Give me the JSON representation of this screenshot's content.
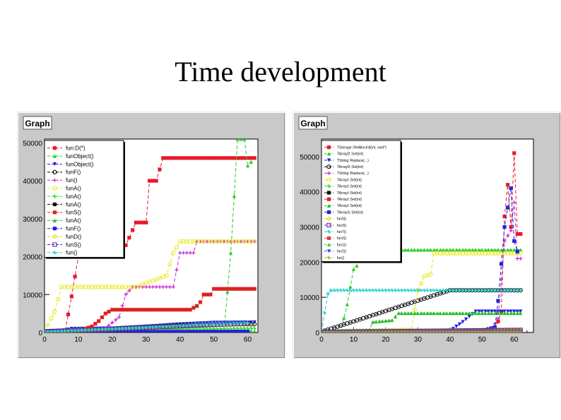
{
  "slide": {
    "title": "Time development"
  },
  "chart_data": [
    {
      "type": "line",
      "title": "Graph",
      "xlim": [
        0,
        63
      ],
      "ylim": [
        0,
        51000
      ],
      "xticks": [
        0,
        10,
        20,
        30,
        40,
        50,
        60
      ],
      "yticks": [
        0,
        10000,
        20000,
        30000,
        40000,
        50000
      ],
      "legend_position": "top-left",
      "grid": false,
      "series": [
        {
          "name": "fun:D(*)",
          "color": "#e8192c",
          "marker": "square",
          "points": [
            [
              0,
              0
            ],
            [
              6,
              0
            ],
            [
              8,
              9500
            ],
            [
              10,
              20000
            ],
            [
              12,
              20000
            ],
            [
              15,
              23000
            ],
            [
              24,
              23000
            ],
            [
              27,
              29000
            ],
            [
              30,
              29000
            ],
            [
              31,
              40000
            ],
            [
              33,
              40000
            ],
            [
              35,
              46000
            ],
            [
              62,
              46000
            ]
          ]
        },
        {
          "name": "funObject()",
          "color": "#22cc22",
          "marker": "triangle",
          "points": [
            [
              0,
              300
            ],
            [
              50,
              300
            ],
            [
              53,
              500
            ],
            [
              55,
              21000
            ],
            [
              57,
              51000
            ],
            [
              59,
              51000
            ],
            [
              60,
              44000
            ],
            [
              61,
              45000
            ]
          ]
        },
        {
          "name": "funObject()",
          "color": "#2020dd",
          "marker": "triangle-down",
          "points": [
            [
              0,
              400
            ],
            [
              6,
              600
            ],
            [
              8,
              1000
            ],
            [
              20,
              1100
            ],
            [
              30,
              1600
            ],
            [
              40,
              2200
            ],
            [
              50,
              2600
            ],
            [
              62,
              2700
            ]
          ]
        },
        {
          "name": "funF()",
          "color": "#000000",
          "marker": "circle",
          "points": [
            [
              0,
              200
            ],
            [
              20,
              900
            ],
            [
              40,
              1900
            ],
            [
              62,
              2200
            ]
          ]
        },
        {
          "name": "fun()",
          "color": "#cc22cc",
          "marker": "plus",
          "points": [
            [
              0,
              200
            ],
            [
              18,
              1200
            ],
            [
              22,
              4000
            ],
            [
              24,
              10000
            ],
            [
              26,
              12000
            ],
            [
              38,
              12000
            ],
            [
              40,
              21000
            ],
            [
              44,
              21000
            ],
            [
              45,
              24000
            ],
            [
              62,
              24000
            ]
          ]
        },
        {
          "name": "funA()",
          "color": "#e8e822",
          "marker": "circle",
          "points": [
            [
              0,
              200
            ],
            [
              3,
              5500
            ],
            [
              5,
              12000
            ],
            [
              27,
              12000
            ],
            [
              36,
              15000
            ],
            [
              38,
              21000
            ],
            [
              40,
              24000
            ],
            [
              62,
              24000
            ]
          ]
        },
        {
          "name": "funA()",
          "color": "#22dd22",
          "marker": "star",
          "points": [
            [
              0,
              100
            ],
            [
              20,
              700
            ],
            [
              40,
              900
            ],
            [
              62,
              1100
            ]
          ]
        },
        {
          "name": "funA()",
          "color": "#111111",
          "marker": "square",
          "points": [
            [
              0,
              100
            ],
            [
              60,
              200
            ]
          ]
        },
        {
          "name": "funS()",
          "color": "#dd2222",
          "marker": "square",
          "points": [
            [
              0,
              0
            ],
            [
              10,
              0
            ],
            [
              12,
              1000
            ],
            [
              14,
              1600
            ],
            [
              16,
              3000
            ],
            [
              18,
              5000
            ],
            [
              20,
              6000
            ],
            [
              43,
              6000
            ],
            [
              45,
              7000
            ],
            [
              46,
              8000
            ],
            [
              47,
              10000
            ],
            [
              49,
              10000
            ],
            [
              50,
              11500
            ],
            [
              62,
              11500
            ]
          ]
        },
        {
          "name": "funA()",
          "color": "#22bb22",
          "marker": "triangle",
          "points": [
            [
              0,
              150
            ],
            [
              40,
              350
            ],
            [
              62,
              350
            ]
          ]
        },
        {
          "name": "funF()",
          "color": "#2222dd",
          "marker": "square",
          "points": [
            [
              0,
              120
            ],
            [
              60,
              250
            ]
          ]
        },
        {
          "name": "funD()",
          "color": "#dddd00",
          "marker": "diamond",
          "points": [
            [
              0,
              150
            ],
            [
              60,
              2200
            ]
          ]
        },
        {
          "name": "funS()",
          "color": "#5522aa",
          "marker": "square-open",
          "points": [
            [
              0,
              150
            ],
            [
              60,
              2400
            ]
          ]
        },
        {
          "name": "fun()",
          "color": "#22cccc",
          "marker": "star",
          "points": [
            [
              0,
              150
            ],
            [
              60,
              2600
            ]
          ]
        }
      ]
    },
    {
      "type": "line",
      "title": "Graph",
      "xlim": [
        0,
        66
      ],
      "ylim": [
        0,
        55000
      ],
      "xticks": [
        0,
        10,
        20,
        30,
        40,
        50,
        60
      ],
      "yticks": [
        0,
        10000,
        20000,
        30000,
        40000,
        50000
      ],
      "legend_position": "top-left",
      "grid": false,
      "series": [
        {
          "name": "TStorage::ReAllocInit(int, void*)",
          "color": "#e8192c",
          "marker": "square",
          "points": [
            [
              0,
              0
            ],
            [
              54,
              300
            ],
            [
              56,
              6000
            ],
            [
              57,
              33000
            ],
            [
              58,
              42000
            ],
            [
              59,
              30000
            ],
            [
              60,
              51000
            ],
            [
              61,
              28000
            ],
            [
              62,
              28000
            ]
          ]
        },
        {
          "name": "TArrayD::Set(int)",
          "color": "#22cc22",
          "marker": "triangle",
          "points": [
            [
              0,
              300
            ],
            [
              6,
              300
            ],
            [
              8,
              8000
            ],
            [
              10,
              18000
            ],
            [
              11,
              19000
            ],
            [
              13,
              23500
            ],
            [
              62,
              23500
            ]
          ]
        },
        {
          "name": "TString::Replace(...)",
          "color": "#2020dd",
          "marker": "triangle-down",
          "points": [
            [
              0,
              300
            ],
            [
              40,
              400
            ],
            [
              44,
              3000
            ],
            [
              48,
              6000
            ],
            [
              62,
              6000
            ]
          ]
        },
        {
          "name": "TArrayD::Set(int)",
          "color": "#000000",
          "marker": "circle",
          "points": [
            [
              0,
              200
            ],
            [
              40,
              12000
            ],
            [
              62,
              12000
            ]
          ]
        },
        {
          "name": "TString::Replace(...)",
          "color": "#cc22cc",
          "marker": "plus",
          "points": [
            [
              0,
              200
            ],
            [
              50,
              300
            ],
            [
              53,
              1000
            ],
            [
              55,
              4000
            ],
            [
              57,
              26000
            ],
            [
              59,
              29000
            ],
            [
              60,
              37000
            ],
            [
              61,
              21000
            ],
            [
              62,
              21000
            ]
          ]
        },
        {
          "name": "TArrayI::Set(int)",
          "color": "#e8e822",
          "marker": "circle",
          "points": [
            [
              0,
              200
            ],
            [
              28,
              800
            ],
            [
              30,
              12000
            ],
            [
              32,
              16000
            ],
            [
              34,
              16500
            ],
            [
              35,
              22500
            ],
            [
              62,
              22500
            ]
          ]
        },
        {
          "name": "TArrayI::Set(int)",
          "color": "#22dd22",
          "marker": "star",
          "points": [
            [
              0,
              200
            ],
            [
              10,
              600
            ],
            [
              62,
              700
            ]
          ]
        },
        {
          "name": "TArrayI::Set(int)",
          "color": "#111111",
          "marker": "square",
          "points": [
            [
              0,
              100
            ],
            [
              62,
              200
            ]
          ]
        },
        {
          "name": "TArrayI::Set(int)",
          "color": "#dd2222",
          "marker": "square",
          "points": [
            [
              0,
              100
            ],
            [
              62,
              150
            ]
          ]
        },
        {
          "name": "TArrayI::Set(int)",
          "color": "#22bb22",
          "marker": "triangle",
          "points": [
            [
              0,
              200
            ],
            [
              15,
              800
            ],
            [
              16,
              3000
            ],
            [
              22,
              3500
            ],
            [
              24,
              5500
            ],
            [
              62,
              5500
            ]
          ]
        },
        {
          "name": "TArrayS::Set(int)",
          "color": "#2222dd",
          "marker": "square",
          "points": [
            [
              0,
              100
            ],
            [
              50,
              500
            ],
            [
              54,
              1500
            ],
            [
              55,
              9000
            ],
            [
              57,
              30000
            ],
            [
              59,
              41000
            ],
            [
              60,
              26000
            ],
            [
              61,
              23000
            ]
          ]
        },
        {
          "name": "fun0()",
          "color": "#dddd00",
          "marker": "diamond",
          "points": [
            [
              0,
              150
            ],
            [
              62,
              900
            ]
          ]
        },
        {
          "name": "fun3()",
          "color": "#5522aa",
          "marker": "square-open",
          "points": [
            [
              0,
              150
            ],
            [
              62,
              700
            ]
          ]
        },
        {
          "name": "fun7()",
          "color": "#22cccc",
          "marker": "star",
          "points": [
            [
              0,
              200
            ],
            [
              2,
              11000
            ],
            [
              3,
              12000
            ],
            [
              42,
              12000
            ],
            [
              62,
              12000
            ]
          ]
        },
        {
          "name": "fun2()",
          "color": "#dd4444",
          "marker": "square",
          "points": [
            [
              0,
              100
            ],
            [
              62,
              400
            ]
          ]
        },
        {
          "name": "fun1()",
          "color": "#44cc44",
          "marker": "triangle",
          "points": [
            [
              0,
              100
            ],
            [
              62,
              300
            ]
          ]
        },
        {
          "name": "fun2()",
          "color": "#4444dd",
          "marker": "triangle-down",
          "points": [
            [
              0,
              100
            ],
            [
              62,
              200
            ]
          ]
        },
        {
          "name": "fun()",
          "color": "#aaaa22",
          "marker": "star",
          "points": [
            [
              0,
              100
            ],
            [
              62,
              150
            ]
          ]
        }
      ]
    }
  ]
}
